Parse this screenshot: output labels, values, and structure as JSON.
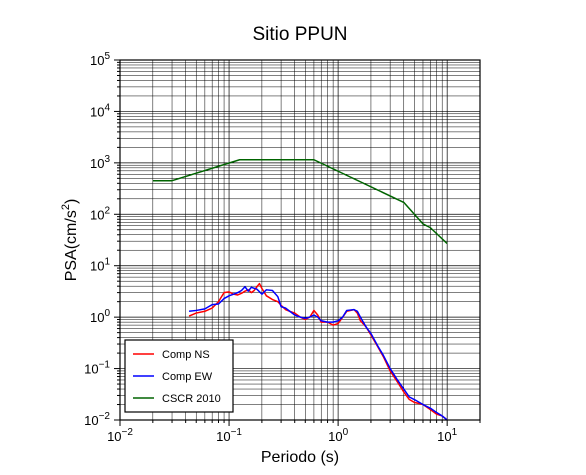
{
  "chart_data": {
    "type": "line",
    "title": "Sitio PPUN",
    "xlabel": "Periodo (s)",
    "ylabel_main": "PSA(cm/s",
    "ylabel_sup": "2",
    "ylabel_tail": ")",
    "x_scale": "log",
    "y_scale": "log",
    "xlim": [
      0.01,
      20
    ],
    "ylim": [
      0.01,
      100000
    ],
    "grid": true,
    "legend_position": "bottom-left",
    "x_ticks": [
      {
        "value": 0.01,
        "base": "10",
        "exp": "−2"
      },
      {
        "value": 0.1,
        "base": "10",
        "exp": "−1"
      },
      {
        "value": 1,
        "base": "10",
        "exp": "0"
      },
      {
        "value": 10,
        "base": "10",
        "exp": "1"
      }
    ],
    "y_ticks": [
      {
        "value": 0.01,
        "base": "10",
        "exp": "−2"
      },
      {
        "value": 0.1,
        "base": "10",
        "exp": "−1"
      },
      {
        "value": 1,
        "base": "10",
        "exp": "0"
      },
      {
        "value": 10,
        "base": "10",
        "exp": "1"
      },
      {
        "value": 100,
        "base": "10",
        "exp": "2"
      },
      {
        "value": 1000,
        "base": "10",
        "exp": "3"
      },
      {
        "value": 10000,
        "base": "10",
        "exp": "4"
      },
      {
        "value": 100000,
        "base": "10",
        "exp": "5"
      }
    ],
    "series": [
      {
        "name": "Comp NS",
        "color": "#ff0000",
        "x": [
          0.043,
          0.05,
          0.06,
          0.07,
          0.08,
          0.09,
          0.1,
          0.11,
          0.12,
          0.13,
          0.14,
          0.15,
          0.16,
          0.17,
          0.18,
          0.19,
          0.2,
          0.22,
          0.25,
          0.28,
          0.3,
          0.33,
          0.36,
          0.4,
          0.45,
          0.5,
          0.55,
          0.6,
          0.65,
          0.7,
          0.8,
          0.9,
          1.0,
          1.1,
          1.2,
          1.4,
          1.5,
          1.6,
          1.8,
          2.0,
          2.3,
          2.6,
          3.0,
          3.5,
          4.0,
          4.5,
          5.0,
          6.0,
          7.0,
          8.0,
          9.0,
          10.0
        ],
        "y": [
          1.05,
          1.2,
          1.3,
          1.5,
          2.0,
          3.0,
          3.1,
          2.8,
          2.7,
          2.9,
          3.2,
          3.4,
          3.0,
          3.3,
          3.9,
          4.5,
          3.6,
          2.6,
          2.2,
          2.0,
          1.7,
          1.4,
          1.3,
          1.2,
          1.0,
          0.9,
          1.0,
          1.35,
          1.1,
          0.8,
          0.8,
          0.7,
          0.75,
          1.0,
          1.3,
          1.4,
          1.2,
          0.85,
          0.65,
          0.45,
          0.27,
          0.17,
          0.09,
          0.055,
          0.035,
          0.025,
          0.022,
          0.02,
          0.016,
          0.013,
          0.012,
          0.01
        ]
      },
      {
        "name": "Comp EW",
        "color": "#0000ff",
        "x": [
          0.043,
          0.05,
          0.06,
          0.07,
          0.08,
          0.09,
          0.1,
          0.11,
          0.12,
          0.13,
          0.14,
          0.15,
          0.16,
          0.18,
          0.2,
          0.22,
          0.25,
          0.28,
          0.3,
          0.33,
          0.36,
          0.4,
          0.45,
          0.5,
          0.55,
          0.6,
          0.65,
          0.7,
          0.8,
          0.9,
          1.0,
          1.1,
          1.2,
          1.4,
          1.5,
          1.6,
          1.8,
          2.0,
          2.3,
          2.6,
          3.0,
          3.5,
          4.0,
          4.5,
          5.0,
          6.0,
          7.0,
          8.0,
          9.0,
          10.0
        ],
        "y": [
          1.3,
          1.35,
          1.45,
          1.75,
          1.8,
          2.3,
          2.6,
          2.8,
          3.0,
          3.3,
          3.9,
          3.2,
          3.8,
          3.5,
          2.8,
          3.4,
          3.3,
          2.5,
          1.6,
          1.5,
          1.3,
          1.1,
          1.0,
          0.95,
          1.0,
          1.1,
          1.0,
          0.85,
          0.8,
          0.8,
          0.85,
          1.0,
          1.35,
          1.4,
          1.3,
          1.0,
          0.65,
          0.48,
          0.28,
          0.18,
          0.1,
          0.06,
          0.04,
          0.028,
          0.025,
          0.02,
          0.017,
          0.014,
          0.012,
          0.01
        ]
      },
      {
        "name": "CSCR 2010",
        "color": "#006400",
        "x": [
          0.02,
          0.03,
          0.125,
          0.6,
          4.0,
          6.0,
          7.0,
          10.0
        ],
        "y": [
          450,
          450,
          1150,
          1150,
          170,
          65,
          55,
          27
        ]
      }
    ]
  }
}
